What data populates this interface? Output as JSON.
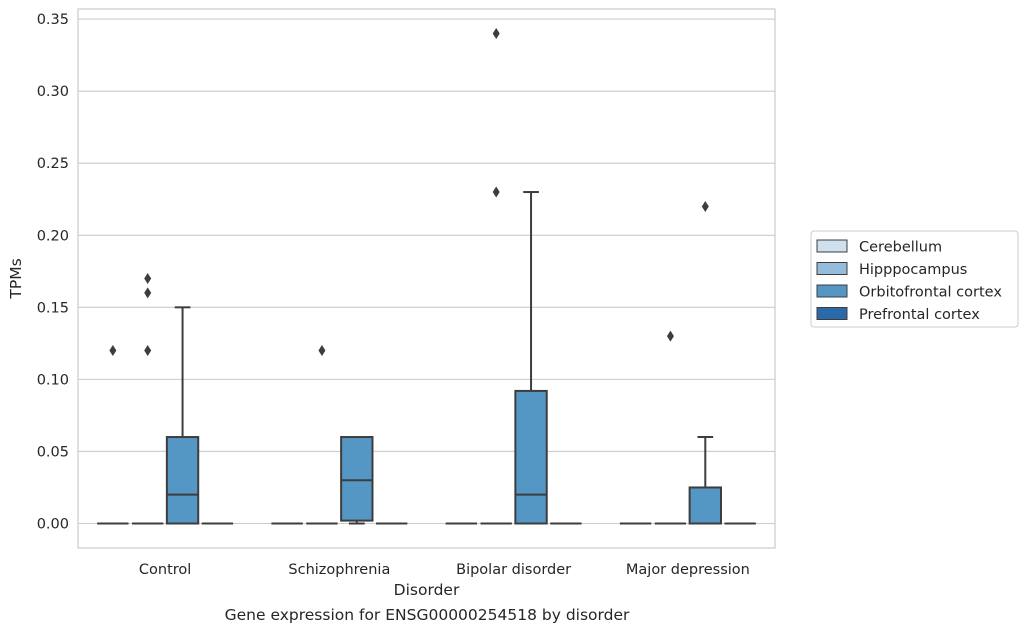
{
  "chart_data": {
    "type": "box",
    "xlabel": "Disorder",
    "ylabel": "TPMs",
    "caption": "Gene expression for ENSG00000254518 by disorder",
    "ylim": [
      -0.017,
      0.357
    ],
    "yticks": [
      "0.00",
      "0.05",
      "0.10",
      "0.15",
      "0.20",
      "0.25",
      "0.30",
      "0.35"
    ],
    "grid": true,
    "legend_position": "right",
    "categories": [
      "Control",
      "Schizophrenia",
      "Bipolar disorder",
      "Major depression"
    ],
    "series": [
      {
        "name": "Cerebellum",
        "color": "#d0dfed",
        "boxes": [
          {
            "min": 0,
            "q1": 0,
            "median": 0,
            "q3": 0,
            "max": 0,
            "outliers": [
              0.12
            ]
          },
          {
            "min": 0,
            "q1": 0,
            "median": 0,
            "q3": 0,
            "max": 0,
            "outliers": []
          },
          {
            "min": 0,
            "q1": 0,
            "median": 0,
            "q3": 0,
            "max": 0,
            "outliers": []
          },
          {
            "min": 0,
            "q1": 0,
            "median": 0,
            "q3": 0,
            "max": 0,
            "outliers": []
          }
        ]
      },
      {
        "name": "Hipppocampus",
        "color": "#93bdd9",
        "boxes": [
          {
            "min": 0,
            "q1": 0,
            "median": 0,
            "q3": 0,
            "max": 0,
            "outliers": [
              0.12,
              0.16,
              0.17
            ]
          },
          {
            "min": 0,
            "q1": 0,
            "median": 0,
            "q3": 0,
            "max": 0,
            "outliers": [
              0.12
            ]
          },
          {
            "min": 0,
            "q1": 0,
            "median": 0,
            "q3": 0,
            "max": 0,
            "outliers": [
              0.23,
              0.34
            ]
          },
          {
            "min": 0,
            "q1": 0,
            "median": 0,
            "q3": 0,
            "max": 0,
            "outliers": [
              0.13
            ]
          }
        ]
      },
      {
        "name": "Orbitofrontal cortex",
        "color": "#5496c4",
        "boxes": [
          {
            "min": 0,
            "q1": 0,
            "median": 0.02,
            "q3": 0.06,
            "max": 0.15,
            "outliers": []
          },
          {
            "min": 0,
            "q1": 0.002,
            "median": 0.03,
            "q3": 0.06,
            "max": 0.06,
            "outliers": []
          },
          {
            "min": 0,
            "q1": 0,
            "median": 0.02,
            "q3": 0.092,
            "max": 0.23,
            "outliers": []
          },
          {
            "min": 0,
            "q1": 0,
            "median": 0,
            "q3": 0.025,
            "max": 0.06,
            "outliers": [
              0.22
            ]
          }
        ]
      },
      {
        "name": "Prefrontal cortex",
        "color": "#2a6aa8",
        "boxes": [
          {
            "min": 0,
            "q1": 0,
            "median": 0,
            "q3": 0,
            "max": 0,
            "outliers": []
          },
          {
            "min": 0,
            "q1": 0,
            "median": 0,
            "q3": 0,
            "max": 0,
            "outliers": []
          },
          {
            "min": 0,
            "q1": 0,
            "median": 0,
            "q3": 0,
            "max": 0,
            "outliers": []
          },
          {
            "min": 0,
            "q1": 0,
            "median": 0,
            "q3": 0,
            "max": 0,
            "outliers": []
          }
        ]
      }
    ]
  }
}
